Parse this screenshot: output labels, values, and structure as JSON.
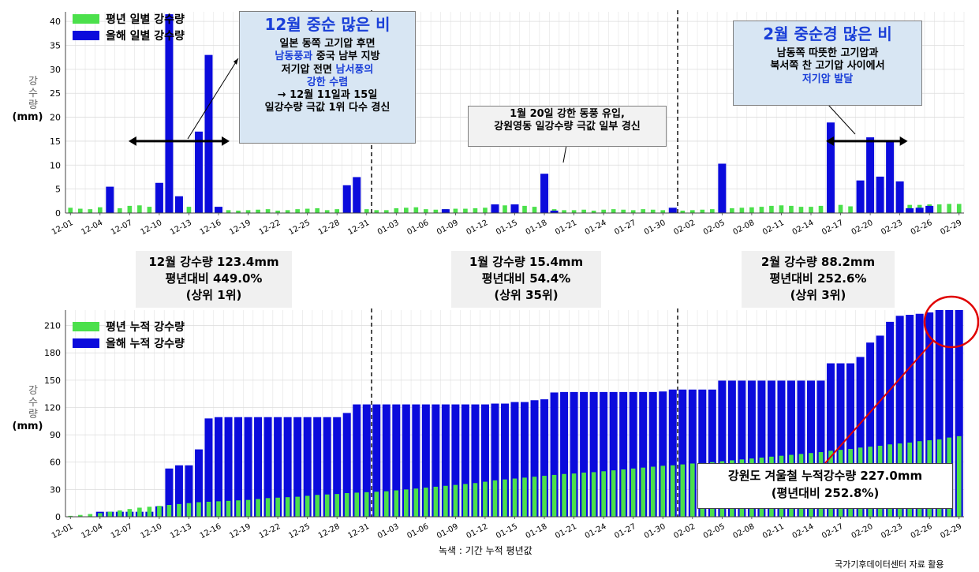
{
  "chart_data": [
    {
      "type": "bar",
      "ylabel": "강수량 (mm)",
      "ylim": [
        0,
        42
      ],
      "yticks": [
        0,
        5,
        10,
        15,
        20,
        25,
        30,
        35,
        40
      ],
      "x_tick_labels": [
        "12-01",
        "12-04",
        "12-07",
        "12-10",
        "12-13",
        "12-16",
        "12-19",
        "12-22",
        "12-25",
        "12-28",
        "12-31",
        "01-03",
        "01-06",
        "01-09",
        "01-12",
        "01-15",
        "01-18",
        "01-21",
        "01-24",
        "01-27",
        "01-30",
        "02-02",
        "02-05",
        "02-08",
        "02-11",
        "02-14",
        "02-17",
        "02-20",
        "02-23",
        "02-26",
        "02-29"
      ],
      "legend": {
        "placement": "top-left"
      },
      "grid": true,
      "series": [
        {
          "name": "평년 일별 강수량",
          "color": "#4be04b",
          "values": [
            1.1,
            0.9,
            0.8,
            1.2,
            0.6,
            1.0,
            1.5,
            1.6,
            1.3,
            1.3,
            1.3,
            1.4,
            1.3,
            1.3,
            1.4,
            0.5,
            0.6,
            0.5,
            0.6,
            0.7,
            0.8,
            0.5,
            0.6,
            0.8,
            0.9,
            1.0,
            0.6,
            0.8,
            0.7,
            0.8,
            0.8,
            0.6,
            0.6,
            1.0,
            1.1,
            1.2,
            0.8,
            0.7,
            0.8,
            0.9,
            0.9,
            1.0,
            1.1,
            1.3,
            1.6,
            1.7,
            1.5,
            1.3,
            0.6,
            0.8,
            0.6,
            0.6,
            0.7,
            0.5,
            0.7,
            0.8,
            0.7,
            0.6,
            0.8,
            0.7,
            0.6,
            0.6,
            0.5,
            0.6,
            0.7,
            0.8,
            0.9,
            1.0,
            1.1,
            1.2,
            1.3,
            1.5,
            1.6,
            1.5,
            1.3,
            1.3,
            1.5,
            1.6,
            1.7,
            1.4,
            1.3,
            1.4,
            1.3,
            1.5,
            1.6,
            1.7,
            1.7,
            1.8,
            1.8,
            1.9,
            1.9
          ]
        },
        {
          "name": "올해 일별 강수량",
          "color": "#0b0bdc",
          "values": [
            0,
            0,
            0,
            0,
            5.5,
            0,
            0,
            0,
            0,
            6.3,
            41.5,
            3.5,
            0,
            17,
            33,
            1.3,
            0,
            0,
            0,
            0,
            0,
            0,
            0,
            0,
            0,
            0,
            0,
            0,
            5.8,
            7.5,
            0,
            0,
            0,
            0,
            0,
            0,
            0,
            0,
            0.8,
            0,
            0,
            0,
            0,
            1.8,
            0,
            1.8,
            0,
            0,
            8.2,
            0.5,
            0,
            0,
            0,
            0,
            0,
            0,
            0,
            0,
            0,
            0,
            0,
            1.1,
            0,
            0,
            0,
            0,
            10.3,
            0,
            0,
            0,
            0,
            0,
            0,
            0,
            0,
            0,
            0,
            18.9,
            0,
            0,
            6.8,
            15.8,
            7.6,
            15.2,
            6.6,
            1,
            1.1,
            1.5,
            0,
            0,
            0
          ]
        }
      ],
      "annotations": [
        {
          "title": "12월 중순 많은 비",
          "lines": [
            "일본 동쪽 고기압 후면",
            "남동풍과 중국 남부 지방",
            "저기압 전면 남서풍의",
            "강한 수렴",
            "→ 12월 11일과 15일",
            "일강수량 극값 1위 다수 경신"
          ]
        },
        {
          "lines": [
            "1월 20일 강한 동풍 유입,",
            "강원영동 일강수량 극값 일부 경신"
          ]
        },
        {
          "title": "2월 중순경 많은 비",
          "lines": [
            "남동쪽 따뜻한 고기압과",
            "북서쪽 찬 고기압 사이에서",
            "저기압 발달"
          ]
        }
      ]
    },
    {
      "type": "bar",
      "ylabel": "강수량 (mm)",
      "ylim": [
        0,
        227
      ],
      "yticks": [
        0,
        30,
        60,
        90,
        120,
        150,
        180,
        210
      ],
      "x_tick_labels": [
        "12-01",
        "12-04",
        "12-07",
        "12-10",
        "12-13",
        "12-16",
        "12-19",
        "12-22",
        "12-25",
        "12-28",
        "12-31",
        "01-03",
        "01-06",
        "01-09",
        "01-12",
        "01-15",
        "01-18",
        "01-21",
        "01-24",
        "01-27",
        "01-30",
        "02-02",
        "02-05",
        "02-08",
        "02-11",
        "02-14",
        "02-17",
        "02-20",
        "02-23",
        "02-26",
        "02-29"
      ],
      "legend": {
        "placement": "top-left"
      },
      "grid": true,
      "series": [
        {
          "name": "평년 누적 강수량",
          "color": "#4be04b",
          "values": [
            1.0,
            2.0,
            3.0,
            4.0,
            5.5,
            7.0,
            8.5,
            10.0,
            11.0,
            12.0,
            13.0,
            14.0,
            15.0,
            16.0,
            16.5,
            17.0,
            17.5,
            18.0,
            18.5,
            19.5,
            20.5,
            21.0,
            21.5,
            22.0,
            23.0,
            24.0,
            24.5,
            25.0,
            26.0,
            26.5,
            27.0,
            27.5,
            28.0,
            29.0,
            30.0,
            31.0,
            32.0,
            33.0,
            34.0,
            35.0,
            36.0,
            37.0,
            38.5,
            40.0,
            41.0,
            42.0,
            43.0,
            44.0,
            45.0,
            46.0,
            47.0,
            47.5,
            48.5,
            49.0,
            50.0,
            51.0,
            52.0,
            53.0,
            54.0,
            55.0,
            56.0,
            56.5,
            57.5,
            58.5,
            59.0,
            60.0,
            61.0,
            62.0,
            63.0,
            64.0,
            65.0,
            66.0,
            67.0,
            68.0,
            69.0,
            70.0,
            71.0,
            72.5,
            73.5,
            74.5,
            76.0,
            77.0,
            78.0,
            79.5,
            80.5,
            81.5,
            83.0,
            84.0,
            85.0,
            87.0,
            88.5
          ]
        },
        {
          "name": "올해 누적 강수량",
          "color": "#0b0bdc",
          "values": [
            0,
            0,
            0,
            5.5,
            5.5,
            5.5,
            5.5,
            5.5,
            5.5,
            11.5,
            53,
            56.5,
            56.5,
            74,
            108,
            109.4,
            109.4,
            109.4,
            109.4,
            109.4,
            109.4,
            109.4,
            109.4,
            109.4,
            109.4,
            109.4,
            109.4,
            109.4,
            114,
            123.4,
            123.4,
            123.4,
            123.4,
            123.4,
            123.4,
            123.4,
            123.4,
            123.4,
            123.4,
            123.4,
            123.4,
            123.4,
            123.4,
            124.3,
            124.3,
            126,
            126,
            128,
            129,
            136.5,
            137,
            137,
            137,
            137,
            137,
            137,
            137,
            137,
            137,
            137,
            137.6,
            139.7,
            139.7,
            139.7,
            139.7,
            139.7,
            149.5,
            149.5,
            149.5,
            149.5,
            149.5,
            149.5,
            149.5,
            149.5,
            149.5,
            149.5,
            149.5,
            168.5,
            168.5,
            168.5,
            175.5,
            191.3,
            198.9,
            214.1,
            220.7,
            221.8,
            222.9,
            224.4,
            227,
            227,
            227
          ]
        }
      ]
    }
  ],
  "summaries": [
    {
      "line1": "12월 강수량 123.4mm",
      "line2": "평년대비 449.0%",
      "line3": "(상위 1위)"
    },
    {
      "line1": "1월 강수량 15.4mm",
      "line2": "평년대비 54.4%",
      "line3": "(상위 35위)"
    },
    {
      "line1": "2월 강수량 88.2mm",
      "line2": "평년대비 252.6%",
      "line3": "(상위 3위)"
    }
  ],
  "callouts": {
    "dec_title": "12월 중순 많은 비",
    "dec_l1": "일본 동쪽 고기압 후면",
    "dec_l2a": "남동풍과",
    "dec_l2b": " 중국 남부 지방",
    "dec_l3a": "저기압 전면 ",
    "dec_l3b": "남서풍의",
    "dec_l4": "강한 수렴",
    "dec_l5": "→ 12월 11일과 15일",
    "dec_l6": "일강수량 극값 1위 다수 경신",
    "jan_l1": "1월 20일 강한 동풍 유입,",
    "jan_l2": "강원영동 일강수량 극값 일부 경신",
    "feb_title": "2월 중순경 많은 비",
    "feb_l1": "남동쪽 따뜻한 고기압과",
    "feb_l2": "북서쪽 찬 고기압 사이에서",
    "feb_l3": "저기압 발달",
    "total_l1": "강원도 겨울철 누적강수량 227.0mm",
    "total_l2": "(평년대비 252.8%)"
  },
  "ylabel_chars": [
    "강",
    "수",
    "량",
    "(mm)"
  ],
  "footer": {
    "note": "녹색 : 기간 누적 평년값",
    "source": "국가기후데이터센터 자료 활용"
  },
  "colors": {
    "normal": "#4be04b",
    "this_year": "#0b0bdc",
    "highlight_circle": "#e00000",
    "callout_blue_bg": "#d8e6f3"
  }
}
